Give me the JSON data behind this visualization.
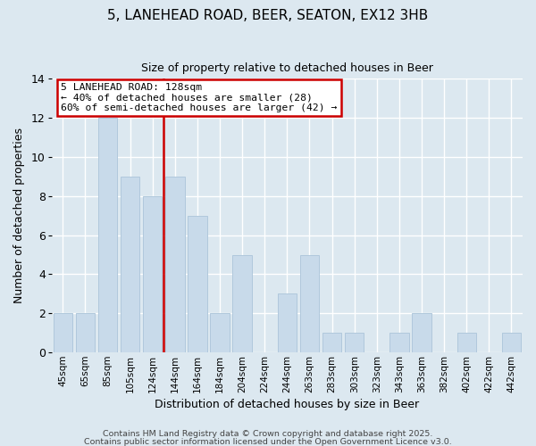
{
  "title": "5, LANEHEAD ROAD, BEER, SEATON, EX12 3HB",
  "subtitle": "Size of property relative to detached houses in Beer",
  "xlabel": "Distribution of detached houses by size in Beer",
  "ylabel": "Number of detached properties",
  "bar_color": "#c8daea",
  "bar_edge_color": "#b0c8dc",
  "figure_bg_color": "#dce8f0",
  "axes_bg_color": "#dce8f0",
  "grid_color": "#ffffff",
  "categories": [
    "45sqm",
    "65sqm",
    "85sqm",
    "105sqm",
    "124sqm",
    "144sqm",
    "164sqm",
    "184sqm",
    "204sqm",
    "224sqm",
    "244sqm",
    "263sqm",
    "283sqm",
    "303sqm",
    "323sqm",
    "343sqm",
    "363sqm",
    "382sqm",
    "402sqm",
    "422sqm",
    "442sqm"
  ],
  "values": [
    2,
    2,
    12,
    9,
    8,
    9,
    7,
    2,
    5,
    0,
    3,
    5,
    1,
    1,
    0,
    1,
    2,
    0,
    1,
    0,
    1
  ],
  "ylim": [
    0,
    14
  ],
  "yticks": [
    0,
    2,
    4,
    6,
    8,
    10,
    12,
    14
  ],
  "property_line_idx": 4,
  "annotation_line1": "5 LANEHEAD ROAD: 128sqm",
  "annotation_line2": "← 40% of detached houses are smaller (28)",
  "annotation_line3": "60% of semi-detached houses are larger (42) →",
  "annotation_box_color": "#ffffff",
  "annotation_box_edge": "#cc0000",
  "property_line_color": "#cc0000",
  "footer1": "Contains HM Land Registry data © Crown copyright and database right 2025.",
  "footer2": "Contains public sector information licensed under the Open Government Licence v3.0."
}
